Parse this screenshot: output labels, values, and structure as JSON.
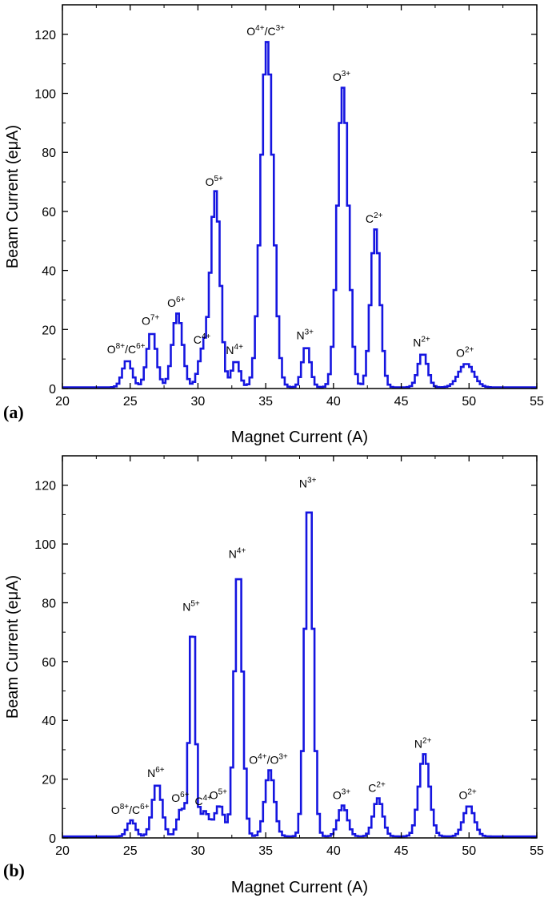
{
  "chart_data": [
    {
      "type": "line",
      "panel_label": "(a)",
      "xlabel": "Magnet Current (A)",
      "ylabel": "Beam Current (eμA)",
      "xlim": [
        20,
        55
      ],
      "ylim": [
        0,
        130
      ],
      "xticks": [
        20,
        25,
        30,
        35,
        40,
        45,
        50,
        55
      ],
      "yticks": [
        0,
        20,
        40,
        60,
        80,
        100,
        120
      ],
      "grid": false,
      "color": "#1515e0",
      "baseline": 0.4,
      "peaks": [
        {
          "base": "O",
          "charge": "8+",
          "base2": "C",
          "charge2": "6+",
          "x": 24.7,
          "height": 9.2,
          "width": 0.35
        },
        {
          "base": "O",
          "charge": "7+",
          "x": 26.5,
          "height": 18.8,
          "width": 0.35
        },
        {
          "base": "O",
          "charge": "6+",
          "x": 28.4,
          "height": 25.0,
          "width": 0.38
        },
        {
          "base": "C",
          "charge": "4+",
          "x": 30.3,
          "height": 12.5,
          "width": 0.35
        },
        {
          "base": "O",
          "charge": "5+",
          "x": 31.2,
          "height": 66.0,
          "width": 0.35
        },
        {
          "base": "N",
          "charge": "4+",
          "x": 32.7,
          "height": 9.0,
          "width": 0.3
        },
        {
          "base": "O",
          "charge": "4+",
          "base2": "C",
          "charge2": "3+",
          "x": 35.0,
          "height": 117.0,
          "width": 0.45
        },
        {
          "base": "N",
          "charge": "3+",
          "x": 37.9,
          "height": 14.0,
          "width": 0.3
        },
        {
          "base": "O",
          "charge": "3+",
          "x": 40.6,
          "height": 101.5,
          "width": 0.4
        },
        {
          "base": "C",
          "charge": "2+",
          "x": 43.0,
          "height": 53.5,
          "width": 0.35
        },
        {
          "base": "N",
          "charge": "2+",
          "x": 46.5,
          "height": 11.5,
          "width": 0.35
        },
        {
          "base": "O",
          "charge": "2+",
          "x": 49.7,
          "height": 8.0,
          "width": 0.55
        }
      ]
    },
    {
      "type": "line",
      "panel_label": "(b)",
      "xlabel": "Magnet Current (A)",
      "ylabel": "Beam Current (eμA)",
      "xlim": [
        20,
        55
      ],
      "ylim": [
        0,
        130
      ],
      "xticks": [
        20,
        25,
        30,
        35,
        40,
        45,
        50,
        55
      ],
      "yticks": [
        0,
        20,
        40,
        60,
        80,
        100,
        120
      ],
      "grid": false,
      "color": "#1515e0",
      "baseline": 0.5,
      "peaks": [
        {
          "base": "O",
          "charge": "8+",
          "base2": "C",
          "charge2": "6+",
          "x": 25.0,
          "height": 5.5,
          "width": 0.3
        },
        {
          "base": "N",
          "charge": "6+",
          "x": 26.9,
          "height": 18.0,
          "width": 0.35
        },
        {
          "base": "O",
          "charge": "6+",
          "x": 28.7,
          "height": 9.5,
          "width": 0.3
        },
        {
          "base": "N",
          "charge": "5+",
          "x": 29.5,
          "height": 74.5,
          "width": 0.22
        },
        {
          "base": "C",
          "charge": "4+",
          "x": 30.4,
          "height": 8.5,
          "width": 0.35
        },
        {
          "base": "O",
          "charge": "5+",
          "x": 31.5,
          "height": 10.5,
          "width": 0.35
        },
        {
          "base": "N",
          "charge": "4+",
          "x": 32.9,
          "height": 92.5,
          "width": 0.3
        },
        {
          "base": "O",
          "charge": "4+",
          "base2": "O",
          "charge2": "3+",
          "x": 35.2,
          "height": 22.5,
          "width": 0.35
        },
        {
          "base": "N",
          "charge": "3+",
          "x": 38.1,
          "height": 116.5,
          "width": 0.3
        },
        {
          "base": "O",
          "charge": "3+",
          "x": 40.6,
          "height": 10.5,
          "width": 0.35
        },
        {
          "base": "C",
          "charge": "2+",
          "x": 43.2,
          "height": 13.0,
          "width": 0.35
        },
        {
          "base": "N",
          "charge": "2+",
          "x": 46.6,
          "height": 28.0,
          "width": 0.4
        },
        {
          "base": "O",
          "charge": "2+",
          "x": 49.9,
          "height": 10.5,
          "width": 0.4
        }
      ]
    }
  ]
}
